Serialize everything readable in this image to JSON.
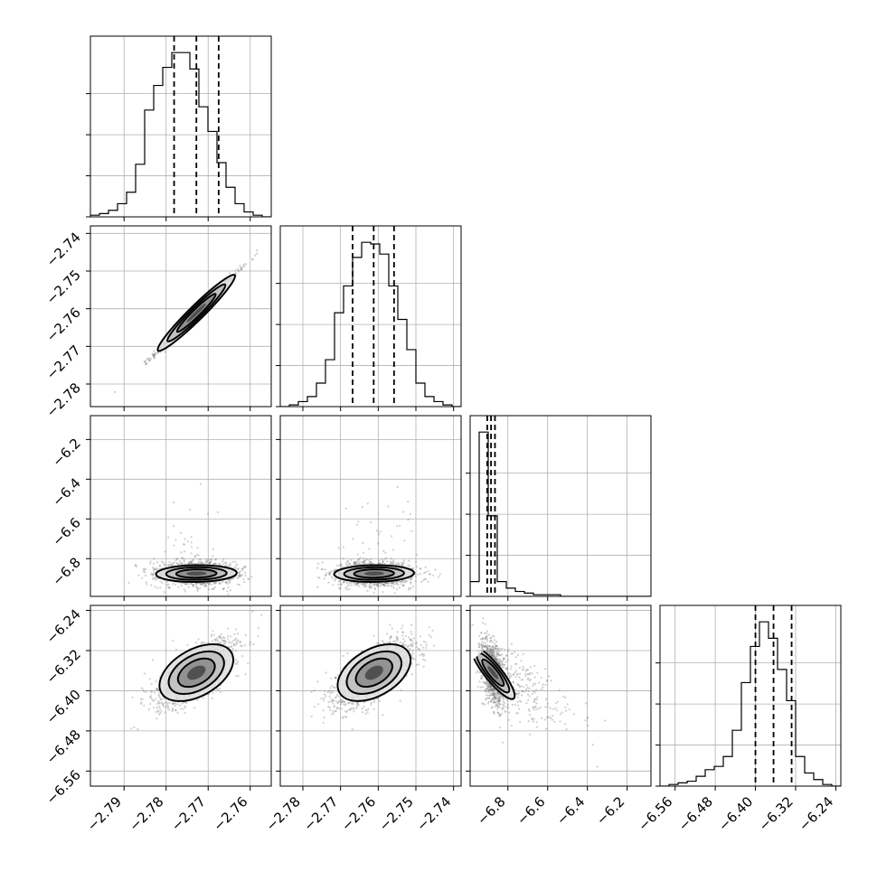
{
  "chart_data": {
    "type": "corner",
    "n_params": 4,
    "grid": true,
    "params": [
      {
        "range": [
          -2.798,
          -2.755
        ],
        "ticks": [
          -2.79,
          -2.78,
          -2.77,
          -2.76
        ],
        "tick_labels": [
          "−2.79",
          "−2.78",
          "−2.77",
          "−2.76"
        ],
        "mean": -2.7728,
        "sd": 0.0048,
        "quantiles": [
          -2.7781,
          -2.7728,
          -2.7675
        ]
      },
      {
        "range": [
          -2.786,
          -2.738
        ],
        "ticks": [
          -2.78,
          -2.77,
          -2.76,
          -2.75,
          -2.74
        ],
        "tick_labels": [
          "−2.78",
          "−2.77",
          "−2.76",
          "−2.75",
          "−2.74"
        ],
        "y_ticks": [
          -2.74,
          -2.75,
          -2.76,
          -2.77,
          -2.78
        ],
        "y_tick_labels": [
          "−2.74",
          "−2.75",
          "−2.76",
          "−2.77",
          "−2.78"
        ],
        "mean": -2.7611,
        "sd": 0.0053,
        "quantiles": [
          -2.7668,
          -2.7612,
          -2.7558
        ]
      },
      {
        "range": [
          -6.99,
          -6.08
        ],
        "ticks": [
          -6.8,
          -6.6,
          -6.4,
          -6.2
        ],
        "tick_labels": [
          "−6.8",
          "−6.6",
          "−6.4",
          "−6.2"
        ],
        "y_ticks": [
          -6.2,
          -6.4,
          -6.6,
          -6.8
        ],
        "y_tick_labels": [
          "−6.2",
          "−6.4",
          "−6.6",
          "−6.8"
        ],
        "mean": -6.875,
        "sd": 0.03,
        "quantiles": [
          -6.904,
          -6.885,
          -6.865
        ]
      },
      {
        "range": [
          -6.59,
          -6.23
        ],
        "ticks": [
          -6.56,
          -6.48,
          -6.4,
          -6.32,
          -6.24
        ],
        "tick_labels": [
          "−6.56",
          "−6.48",
          "−6.40",
          "−6.32",
          "−6.24"
        ],
        "y_ticks": [
          -6.24,
          -6.32,
          -6.4,
          -6.48,
          -6.56
        ],
        "y_tick_labels": [
          "−6.24",
          "−6.32",
          "−6.40",
          "−6.48",
          "−6.56"
        ],
        "mean": -6.364,
        "sd": 0.033,
        "quantiles": [
          -6.4,
          -6.364,
          -6.328
        ]
      }
    ],
    "histograms": [
      {
        "param": 0,
        "bins": 20,
        "counts": [
          1,
          2,
          4,
          8,
          15,
          32,
          65,
          80,
          91,
          100,
          100,
          90,
          67,
          52,
          33,
          18,
          8,
          3,
          1,
          0
        ]
      },
      {
        "param": 1,
        "bins": 20,
        "counts": [
          0,
          1,
          3,
          6,
          14,
          28,
          56,
          72,
          89,
          98,
          97,
          91,
          72,
          52,
          34,
          14,
          6,
          3,
          1,
          0
        ]
      },
      {
        "param": 2,
        "bins": 20,
        "counts": [
          9,
          100,
          49,
          9,
          5,
          3,
          2,
          1,
          1,
          1,
          0,
          0,
          0,
          0,
          0,
          0,
          0,
          0,
          0,
          0
        ]
      },
      {
        "param": 3,
        "bins": 20,
        "counts": [
          0,
          1,
          2,
          3,
          6,
          10,
          12,
          18,
          34,
          63,
          85,
          100,
          90,
          71,
          52,
          18,
          8,
          4,
          1,
          0
        ]
      }
    ],
    "pairs": [
      {
        "row": 1,
        "col": 0,
        "rho": 0.995
      },
      {
        "row": 2,
        "col": 0,
        "rho": 0.05,
        "tail": false
      },
      {
        "row": 2,
        "col": 1,
        "rho": 0.05,
        "tail": false
      },
      {
        "row": 3,
        "col": 0,
        "rho": 0.7
      },
      {
        "row": 3,
        "col": 1,
        "rho": 0.7
      },
      {
        "row": 3,
        "col": 2,
        "rho": -0.45,
        "tail": true
      }
    ]
  }
}
